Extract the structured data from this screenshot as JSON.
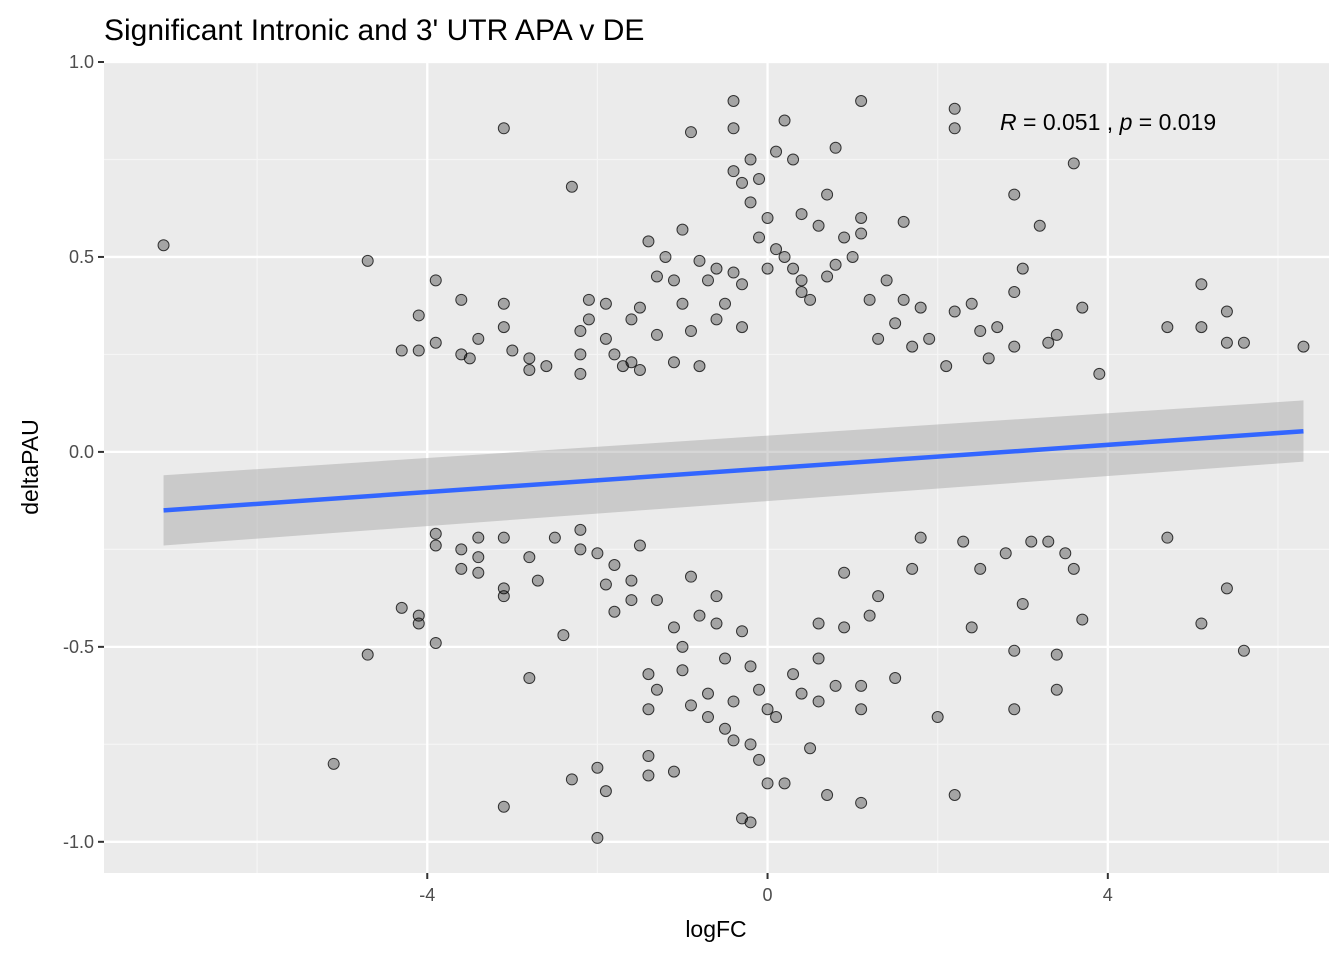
{
  "chart_data": {
    "type": "scatter",
    "title": "Significant Intronic and 3' UTR APA v DE",
    "xlabel": "logFC",
    "ylabel": "deltaPAU",
    "xlim": [
      -7.8,
      6.6
    ],
    "ylim": [
      -1.08,
      1.0
    ],
    "x_ticks": [
      -4,
      0,
      4
    ],
    "x_tick_labels": [
      "-4",
      "0",
      "4"
    ],
    "y_ticks": [
      -1.0,
      -0.5,
      0.0,
      0.5,
      1.0
    ],
    "y_tick_labels": [
      "-1.0",
      "-0.5",
      "0.0",
      "0.5",
      "1.0"
    ],
    "grid": true,
    "point_color": "#000000",
    "point_opacity": 0.3,
    "line_color": "#3366ff",
    "band_color": "#999999",
    "annotation": {
      "R_symbol": "R",
      "R_value": "= 0.051 ,",
      "p_symbol": "p",
      "p_value": "= 0.019"
    },
    "regression": {
      "x": [
        -7.1,
        6.3
      ],
      "y": [
        -0.15,
        0.053
      ],
      "band_lower": [
        -0.24,
        -0.025
      ],
      "band_upper": [
        -0.06,
        0.132
      ]
    },
    "points": [
      [
        -7.1,
        0.53
      ],
      [
        -4.7,
        0.49
      ],
      [
        -5.1,
        -0.8
      ],
      [
        -4.7,
        -0.52
      ],
      [
        -4.3,
        -0.4
      ],
      [
        -4.3,
        0.26
      ],
      [
        -4.1,
        0.35
      ],
      [
        -4.1,
        0.26
      ],
      [
        -4.1,
        -0.42
      ],
      [
        -4.1,
        -0.44
      ],
      [
        -3.9,
        0.44
      ],
      [
        -3.9,
        0.28
      ],
      [
        -3.9,
        -0.21
      ],
      [
        -3.9,
        -0.24
      ],
      [
        -3.9,
        -0.49
      ],
      [
        -3.6,
        0.25
      ],
      [
        -3.6,
        0.39
      ],
      [
        -3.6,
        -0.25
      ],
      [
        -3.6,
        -0.3
      ],
      [
        -3.5,
        0.24
      ],
      [
        -3.4,
        0.29
      ],
      [
        -3.4,
        -0.22
      ],
      [
        -3.4,
        -0.27
      ],
      [
        -3.4,
        -0.31
      ],
      [
        -3.1,
        0.83
      ],
      [
        -3.1,
        0.38
      ],
      [
        -3.1,
        0.32
      ],
      [
        -3.1,
        -0.22
      ],
      [
        -3.1,
        -0.35
      ],
      [
        -3.1,
        -0.37
      ],
      [
        -3.1,
        -0.91
      ],
      [
        -3.0,
        0.26
      ],
      [
        -2.8,
        0.24
      ],
      [
        -2.8,
        0.21
      ],
      [
        -2.8,
        -0.27
      ],
      [
        -2.8,
        -0.58
      ],
      [
        -2.7,
        -0.33
      ],
      [
        -2.6,
        0.22
      ],
      [
        -2.5,
        -0.22
      ],
      [
        -2.4,
        -0.47
      ],
      [
        -2.3,
        0.68
      ],
      [
        -2.3,
        -0.84
      ],
      [
        -2.2,
        0.31
      ],
      [
        -2.2,
        0.25
      ],
      [
        -2.2,
        0.2
      ],
      [
        -2.2,
        -0.2
      ],
      [
        -2.2,
        -0.25
      ],
      [
        -2.1,
        0.39
      ],
      [
        -2.1,
        0.34
      ],
      [
        -2.0,
        -0.99
      ],
      [
        -2.0,
        -0.81
      ],
      [
        -2.0,
        -0.26
      ],
      [
        -1.9,
        0.38
      ],
      [
        -1.9,
        0.29
      ],
      [
        -1.9,
        -0.34
      ],
      [
        -1.9,
        -0.87
      ],
      [
        -1.8,
        0.25
      ],
      [
        -1.8,
        -0.41
      ],
      [
        -1.8,
        -0.29
      ],
      [
        -1.7,
        0.22
      ],
      [
        -1.6,
        0.34
      ],
      [
        -1.6,
        0.23
      ],
      [
        -1.6,
        -0.33
      ],
      [
        -1.6,
        -0.38
      ],
      [
        -1.5,
        0.37
      ],
      [
        -1.5,
        0.21
      ],
      [
        -1.5,
        -0.24
      ],
      [
        -1.4,
        0.54
      ],
      [
        -1.4,
        -0.78
      ],
      [
        -1.4,
        -0.83
      ],
      [
        -1.4,
        -0.66
      ],
      [
        -1.4,
        -0.57
      ],
      [
        -1.3,
        0.45
      ],
      [
        -1.3,
        0.3
      ],
      [
        -1.3,
        -0.38
      ],
      [
        -1.3,
        -0.61
      ],
      [
        -1.2,
        0.5
      ],
      [
        -1.1,
        0.44
      ],
      [
        -1.1,
        0.23
      ],
      [
        -1.1,
        -0.45
      ],
      [
        -1.1,
        -0.82
      ],
      [
        -1.0,
        0.57
      ],
      [
        -1.0,
        0.38
      ],
      [
        -1.0,
        -0.56
      ],
      [
        -1.0,
        -0.5
      ],
      [
        -0.9,
        0.82
      ],
      [
        -0.9,
        0.31
      ],
      [
        -0.9,
        -0.65
      ],
      [
        -0.8,
        0.49
      ],
      [
        -0.8,
        0.22
      ],
      [
        -0.8,
        -0.42
      ],
      [
        -0.7,
        0.44
      ],
      [
        -0.7,
        -0.62
      ],
      [
        -0.7,
        -0.68
      ],
      [
        -0.6,
        0.47
      ],
      [
        -0.6,
        0.34
      ],
      [
        -0.6,
        -0.37
      ],
      [
        -0.5,
        0.38
      ],
      [
        -0.5,
        -0.53
      ],
      [
        -0.5,
        -0.71
      ],
      [
        -0.4,
        0.9
      ],
      [
        -0.4,
        0.83
      ],
      [
        -0.4,
        0.72
      ],
      [
        -0.4,
        0.46
      ],
      [
        -0.4,
        -0.64
      ],
      [
        -0.4,
        -0.74
      ],
      [
        -0.3,
        0.69
      ],
      [
        -0.3,
        0.32
      ],
      [
        -0.3,
        -0.46
      ],
      [
        -0.3,
        -0.94
      ],
      [
        -0.2,
        0.75
      ],
      [
        -0.2,
        0.64
      ],
      [
        -0.2,
        -0.55
      ],
      [
        -0.2,
        -0.75
      ],
      [
        -0.2,
        -0.95
      ],
      [
        -0.1,
        0.7
      ],
      [
        -0.1,
        0.55
      ],
      [
        -0.1,
        -0.61
      ],
      [
        -0.1,
        -0.79
      ],
      [
        0.0,
        0.6
      ],
      [
        0.0,
        0.47
      ],
      [
        0.0,
        -0.66
      ],
      [
        0.0,
        -0.85
      ],
      [
        0.1,
        0.77
      ],
      [
        0.1,
        0.52
      ],
      [
        0.1,
        -0.68
      ],
      [
        0.2,
        0.85
      ],
      [
        0.2,
        0.5
      ],
      [
        0.2,
        -0.85
      ],
      [
        0.3,
        0.75
      ],
      [
        0.3,
        0.47
      ],
      [
        0.3,
        -0.57
      ],
      [
        0.4,
        0.61
      ],
      [
        0.4,
        0.41
      ],
      [
        0.4,
        -0.62
      ],
      [
        0.5,
        0.39
      ],
      [
        0.5,
        -0.76
      ],
      [
        0.6,
        0.58
      ],
      [
        0.6,
        -0.53
      ],
      [
        0.6,
        -0.64
      ],
      [
        0.7,
        0.66
      ],
      [
        0.7,
        0.45
      ],
      [
        0.7,
        -0.88
      ],
      [
        0.8,
        0.78
      ],
      [
        0.8,
        0.48
      ],
      [
        0.8,
        -0.6
      ],
      [
        0.9,
        0.55
      ],
      [
        0.9,
        -0.45
      ],
      [
        1.0,
        0.5
      ],
      [
        1.1,
        0.9
      ],
      [
        1.1,
        0.6
      ],
      [
        1.1,
        0.56
      ],
      [
        1.1,
        -0.6
      ],
      [
        1.1,
        -0.66
      ],
      [
        1.1,
        -0.9
      ],
      [
        1.2,
        0.39
      ],
      [
        1.2,
        -0.42
      ],
      [
        1.3,
        0.29
      ],
      [
        1.3,
        -0.37
      ],
      [
        1.4,
        0.44
      ],
      [
        1.5,
        0.33
      ],
      [
        1.5,
        -0.58
      ],
      [
        1.6,
        0.59
      ],
      [
        1.6,
        0.39
      ],
      [
        1.7,
        0.27
      ],
      [
        1.7,
        -0.3
      ],
      [
        1.8,
        0.37
      ],
      [
        1.8,
        -0.22
      ],
      [
        1.9,
        0.29
      ],
      [
        2.0,
        -0.68
      ],
      [
        2.1,
        0.22
      ],
      [
        2.2,
        0.88
      ],
      [
        2.2,
        0.83
      ],
      [
        2.2,
        0.36
      ],
      [
        2.2,
        -0.88
      ],
      [
        2.3,
        -0.23
      ],
      [
        2.4,
        0.38
      ],
      [
        2.4,
        -0.45
      ],
      [
        2.5,
        0.31
      ],
      [
        2.5,
        -0.3
      ],
      [
        2.6,
        0.24
      ],
      [
        2.7,
        0.32
      ],
      [
        2.8,
        -0.26
      ],
      [
        2.9,
        0.66
      ],
      [
        2.9,
        0.41
      ],
      [
        2.9,
        0.27
      ],
      [
        2.9,
        -0.51
      ],
      [
        2.9,
        -0.66
      ],
      [
        3.0,
        0.47
      ],
      [
        3.0,
        -0.39
      ],
      [
        3.1,
        -0.23
      ],
      [
        3.2,
        0.58
      ],
      [
        3.3,
        0.28
      ],
      [
        3.3,
        -0.23
      ],
      [
        3.4,
        0.3
      ],
      [
        3.4,
        -0.52
      ],
      [
        3.4,
        -0.61
      ],
      [
        3.5,
        -0.26
      ],
      [
        3.6,
        0.74
      ],
      [
        3.6,
        -0.3
      ],
      [
        3.7,
        0.37
      ],
      [
        3.7,
        -0.43
      ],
      [
        3.9,
        0.2
      ],
      [
        4.7,
        0.32
      ],
      [
        4.7,
        -0.22
      ],
      [
        5.1,
        0.43
      ],
      [
        5.1,
        0.32
      ],
      [
        5.1,
        -0.44
      ],
      [
        5.4,
        0.36
      ],
      [
        5.4,
        0.28
      ],
      [
        5.4,
        -0.35
      ],
      [
        5.6,
        0.28
      ],
      [
        5.6,
        -0.51
      ],
      [
        6.3,
        0.27
      ],
      [
        -0.3,
        0.43
      ],
      [
        0.4,
        0.44
      ],
      [
        -0.6,
        -0.44
      ],
      [
        0.6,
        -0.44
      ],
      [
        0.9,
        -0.31
      ],
      [
        -0.9,
        -0.32
      ]
    ]
  }
}
